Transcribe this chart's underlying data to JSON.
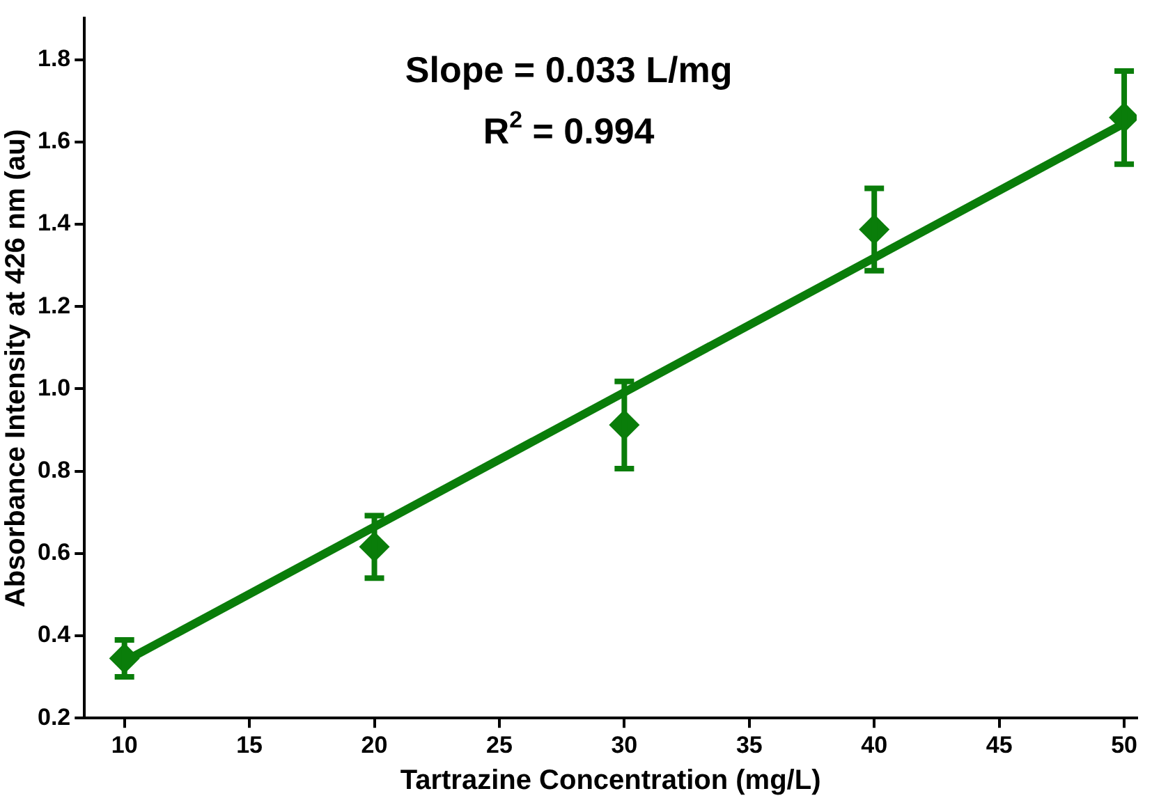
{
  "chart_data": {
    "type": "scatter",
    "xlabel": "Tartrazine Concentration (mg/L)",
    "ylabel": "Absorbance Intensity at 426 nm (au)",
    "annotations": [
      "Slope = 0.033 L/mg",
      "R$^{2}$ = 0.994"
    ],
    "xlim": [
      8.4,
      50.5
    ],
    "xticks": [
      10,
      15,
      20,
      25,
      30,
      35,
      40,
      45,
      50
    ],
    "ylim": [
      0.2,
      1.9
    ],
    "yticks": [
      0.2,
      0.4,
      0.6,
      0.8,
      {
        "value": 1,
        "label": "1.0"
      },
      1.2,
      1.4,
      1.6,
      1.8
    ],
    "grid": false,
    "legend": false,
    "marker": "diamond",
    "series": [
      {
        "type": "line",
        "color": "#0a7d0a",
        "x": [
          10,
          50
        ],
        "values": [
          0.338,
          1.645
        ],
        "marker": "none",
        "line_style": "solid"
      },
      {
        "color": "#0a7d0a",
        "x": [
          10,
          20,
          30,
          40,
          50
        ],
        "values": [
          0.345,
          0.616,
          0.912,
          1.387,
          1.659
        ],
        "errors": [
          0.045,
          0.076,
          0.106,
          0.1,
          0.113
        ]
      }
    ]
  }
}
